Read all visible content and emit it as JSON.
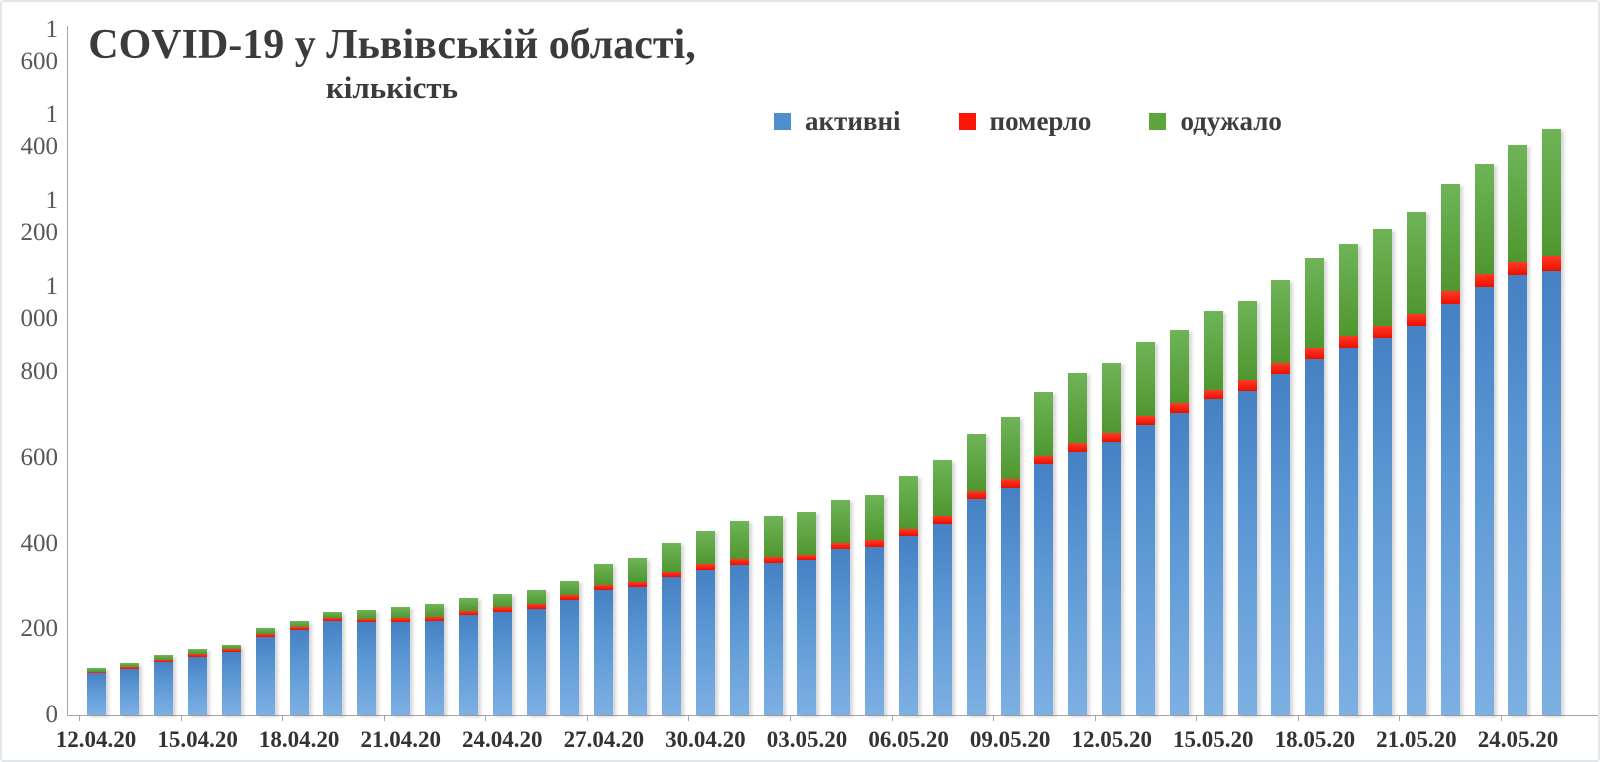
{
  "title": {
    "text": "COVID-19 у Львівській області,",
    "subtitle": "кількість"
  },
  "legend": {
    "items": [
      {
        "label": "активні",
        "color": "#4F8FCC"
      },
      {
        "label": "померло",
        "color": "#FB1708"
      },
      {
        "label": "одужало",
        "color": "#5FA53E"
      }
    ]
  },
  "chart_data": {
    "type": "bar",
    "stacked": true,
    "title": "COVID-19 у Львівській області, кількість",
    "xlabel": "",
    "ylabel": "",
    "ylim": [
      0,
      1600
    ],
    "grid": false,
    "legend_position": "top-center",
    "y_tick_labels": [
      "0",
      "200",
      "400",
      "600",
      "800",
      "1 000",
      "1 200",
      "1 400",
      "1 600"
    ],
    "x_tick_every": 3,
    "x_tick_labels": [
      "12.04.20",
      "15.04.20",
      "18.04.20",
      "21.04.20",
      "24.04.20",
      "27.04.20",
      "30.04.20",
      "03.05.20",
      "06.05.20",
      "09.05.20",
      "12.05.20",
      "15.05.20",
      "18.05.20",
      "21.05.20",
      "24.05.20"
    ],
    "x": [
      "12.04.20",
      "13.04.20",
      "14.04.20",
      "15.04.20",
      "16.04.20",
      "17.04.20",
      "18.04.20",
      "19.04.20",
      "20.04.20",
      "21.04.20",
      "22.04.20",
      "23.04.20",
      "24.04.20",
      "25.04.20",
      "26.04.20",
      "27.04.20",
      "28.04.20",
      "29.04.20",
      "30.04.20",
      "01.05.20",
      "02.05.20",
      "03.05.20",
      "04.05.20",
      "05.05.20",
      "06.05.20",
      "07.05.20",
      "08.05.20",
      "09.05.20",
      "10.05.20",
      "11.05.20",
      "12.05.20",
      "13.05.20",
      "14.05.20",
      "15.05.20",
      "16.05.20",
      "17.05.20",
      "18.05.20",
      "19.05.20",
      "20.05.20",
      "21.05.20",
      "22.05.20",
      "23.05.20",
      "24.05.20",
      "25.05.20"
    ],
    "series": [
      {
        "name": "активні",
        "color": "#4F8FCC",
        "values": [
          97,
          107,
          123,
          135,
          146,
          182,
          198,
          219,
          217,
          218,
          220,
          233,
          240,
          248,
          268,
          291,
          298,
          321,
          339,
          351,
          356,
          361,
          387,
          392,
          417,
          446,
          505,
          531,
          585,
          614,
          638,
          678,
          706,
          737,
          757,
          796,
          831,
          858,
          881,
          908,
          960,
          1000,
          1028,
          1036
        ]
      },
      {
        "name": "померло",
        "color": "#FB1708",
        "values": [
          3,
          5,
          6,
          8,
          8,
          8,
          8,
          8,
          8,
          8,
          8,
          10,
          12,
          12,
          12,
          12,
          13,
          13,
          13,
          13,
          13,
          13,
          15,
          16,
          17,
          19,
          19,
          19,
          20,
          21,
          21,
          21,
          22,
          22,
          24,
          26,
          26,
          27,
          27,
          29,
          29,
          29,
          30,
          36
        ]
      },
      {
        "name": "одужало",
        "color": "#5FA53E",
        "values": [
          10,
          10,
          10,
          10,
          10,
          13,
          13,
          14,
          21,
          26,
          30,
          30,
          31,
          33,
          34,
          50,
          56,
          68,
          77,
          90,
          95,
          99,
          100,
          106,
          123,
          130,
          133,
          145,
          149,
          164,
          164,
          171,
          172,
          184,
          185,
          193,
          211,
          214,
          226,
          238,
          250,
          258,
          272,
          296
        ]
      }
    ]
  }
}
